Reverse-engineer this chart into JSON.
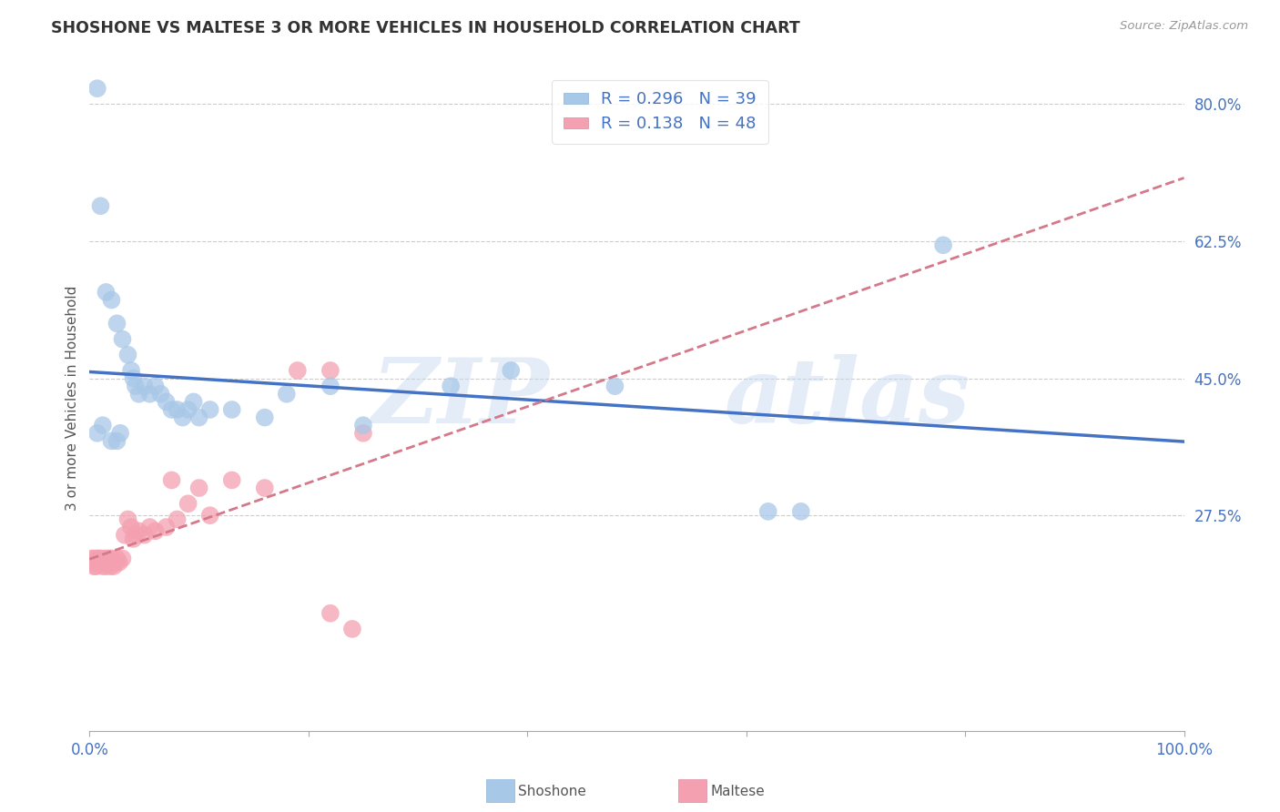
{
  "title": "SHOSHONE VS MALTESE 3 OR MORE VEHICLES IN HOUSEHOLD CORRELATION CHART",
  "source": "Source: ZipAtlas.com",
  "ylabel": "3 or more Vehicles in Household",
  "xlim": [
    0.0,
    1.0
  ],
  "ylim": [
    0.0,
    0.85
  ],
  "yticks_right": [
    0.275,
    0.45,
    0.625,
    0.8
  ],
  "ytick_right_labels": [
    "27.5%",
    "45.0%",
    "62.5%",
    "80.0%"
  ],
  "background_color": "#ffffff",
  "watermark_zip": "ZIP",
  "watermark_atlas": "atlas",
  "shoshone_R": 0.296,
  "shoshone_N": 39,
  "maltese_R": 0.138,
  "maltese_N": 48,
  "shoshone_color": "#a8c8e8",
  "shoshone_line_color": "#4472c4",
  "maltese_color": "#f4a0b0",
  "maltese_line_color": "#d4788a",
  "legend_text_color": "#4472c4",
  "tick_label_color": "#4472c4",
  "shoshone_x": [
    0.007,
    0.01,
    0.015,
    0.02,
    0.025,
    0.03,
    0.035,
    0.038,
    0.04,
    0.042,
    0.045,
    0.05,
    0.055,
    0.06,
    0.065,
    0.07,
    0.075,
    0.08,
    0.085,
    0.09,
    0.095,
    0.1,
    0.11,
    0.13,
    0.16,
    0.18,
    0.22,
    0.25,
    0.33,
    0.48,
    0.62,
    0.65,
    0.78,
    0.025,
    0.007,
    0.012,
    0.02,
    0.028,
    0.385
  ],
  "shoshone_y": [
    0.82,
    0.67,
    0.56,
    0.55,
    0.52,
    0.5,
    0.48,
    0.46,
    0.45,
    0.44,
    0.43,
    0.44,
    0.43,
    0.44,
    0.43,
    0.42,
    0.41,
    0.41,
    0.4,
    0.41,
    0.42,
    0.4,
    0.41,
    0.41,
    0.4,
    0.43,
    0.44,
    0.39,
    0.44,
    0.44,
    0.28,
    0.28,
    0.62,
    0.37,
    0.38,
    0.39,
    0.37,
    0.38,
    0.46
  ],
  "maltese_x": [
    0.002,
    0.003,
    0.004,
    0.005,
    0.005,
    0.006,
    0.007,
    0.008,
    0.009,
    0.01,
    0.011,
    0.012,
    0.013,
    0.014,
    0.015,
    0.016,
    0.017,
    0.018,
    0.019,
    0.02,
    0.021,
    0.022,
    0.024,
    0.025,
    0.027,
    0.03,
    0.032,
    0.035,
    0.038,
    0.04,
    0.042,
    0.045,
    0.05,
    0.055,
    0.06,
    0.07,
    0.075,
    0.08,
    0.09,
    0.1,
    0.11,
    0.13,
    0.16,
    0.19,
    0.22,
    0.25,
    0.22,
    0.24
  ],
  "maltese_y": [
    0.22,
    0.215,
    0.21,
    0.22,
    0.215,
    0.21,
    0.215,
    0.22,
    0.215,
    0.22,
    0.215,
    0.21,
    0.215,
    0.22,
    0.21,
    0.215,
    0.22,
    0.215,
    0.21,
    0.22,
    0.215,
    0.21,
    0.215,
    0.22,
    0.215,
    0.22,
    0.25,
    0.27,
    0.26,
    0.245,
    0.25,
    0.255,
    0.25,
    0.26,
    0.255,
    0.26,
    0.32,
    0.27,
    0.29,
    0.31,
    0.275,
    0.32,
    0.31,
    0.46,
    0.46,
    0.38,
    0.15,
    0.13
  ]
}
